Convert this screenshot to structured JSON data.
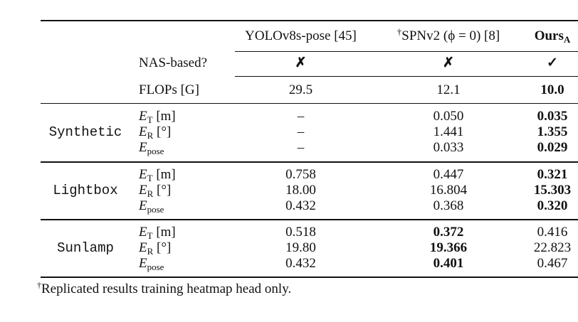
{
  "table": {
    "columns": [
      {
        "name": "YOLOv8s-pose [45]",
        "nas": "✗",
        "flops": "29.5"
      },
      {
        "dagger": "†",
        "name": "SPNv2 (ϕ = 0) [8]",
        "nas": "✗",
        "flops": "12.1"
      },
      {
        "name": "Ours",
        "subscript": "A",
        "nas": "✓",
        "flops": "10.0"
      }
    ],
    "row_labels": {
      "nas": "NAS-based?",
      "flops": "FLOPs [G]"
    },
    "metrics": [
      {
        "symbol": "E",
        "sub": "T",
        "unit": "[m]"
      },
      {
        "symbol": "E",
        "sub": "R",
        "unit": "[°]"
      },
      {
        "symbol": "E",
        "sub": "pose",
        "unit": ""
      }
    ],
    "groups": [
      {
        "name": "Synthetic",
        "rows": [
          [
            "–",
            "0.050",
            "0.035"
          ],
          [
            "–",
            "1.441",
            "1.355"
          ],
          [
            "–",
            "0.033",
            "0.029"
          ]
        ]
      },
      {
        "name": "Lightbox",
        "rows": [
          [
            "0.758",
            "0.447",
            "0.321"
          ],
          [
            "18.00",
            "16.804",
            "15.303"
          ],
          [
            "0.432",
            "0.368",
            "0.320"
          ]
        ]
      },
      {
        "name": "Sunlamp",
        "rows": [
          [
            "0.518",
            "0.372",
            "0.416"
          ],
          [
            "19.80",
            "19.366",
            "22.823"
          ],
          [
            "0.432",
            "0.401",
            "0.467"
          ]
        ]
      }
    ]
  },
  "footnote": {
    "dagger": "†",
    "text": "Replicated results training heatmap head only."
  }
}
